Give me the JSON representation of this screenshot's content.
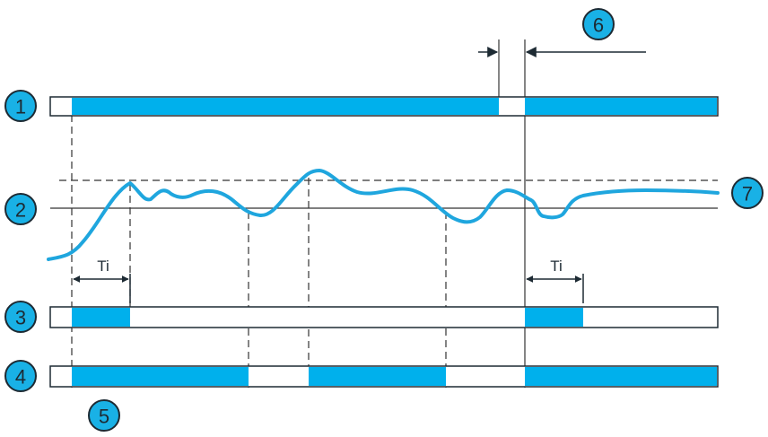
{
  "colors": {
    "bar_fill": "#00b0ec",
    "badge_fill": "#19b1e6",
    "signal_line": "#1fa6de",
    "outline": "#1d2a33"
  },
  "badges": {
    "b1": "1",
    "b2": "2",
    "b3": "3",
    "b4": "4",
    "b5": "5",
    "b6": "6",
    "b7": "7"
  },
  "labels": {
    "ti_first": "Ti",
    "ti_second": "Ti"
  }
}
